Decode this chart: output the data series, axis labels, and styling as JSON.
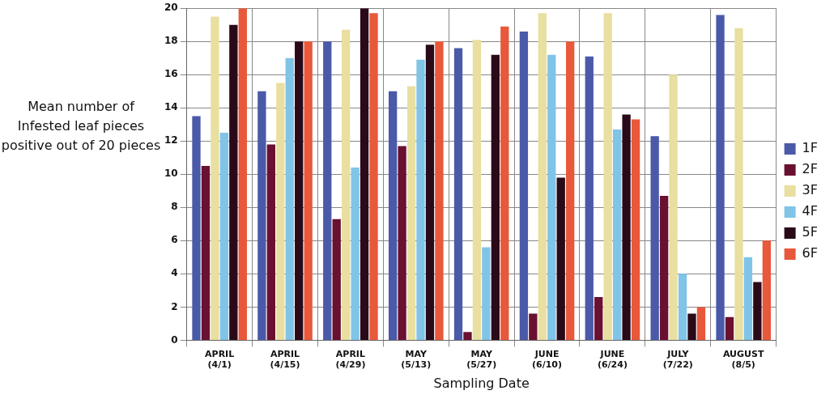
{
  "chart_data": {
    "type": "bar",
    "xlabel": "Sampling Date",
    "ylabel": "Mean number of Infested leaf pieces positive out of 20 pieces",
    "categories": [
      "APRIL (4/1)",
      "APRIL (4/15)",
      "APRIL (4/29)",
      "MAY (5/13)",
      "MAY (5/27)",
      "JUNE (6/10)",
      "JUNE (6/24)",
      "JULY (7/22)",
      "AUGUST (8/5)"
    ],
    "series": [
      {
        "name": "1F",
        "color": "#4a5aa8",
        "values": [
          13.5,
          15,
          18,
          15,
          17.6,
          18.6,
          17.1,
          12.3,
          19.6
        ]
      },
      {
        "name": "2F",
        "color": "#6a1030",
        "values": [
          10.5,
          11.8,
          7.3,
          11.7,
          0.5,
          1.6,
          2.6,
          8.7,
          1.4
        ]
      },
      {
        "name": "3F",
        "color": "#e8dfa0",
        "values": [
          19.5,
          15.5,
          18.7,
          15.3,
          18.1,
          19.7,
          19.7,
          16,
          18.8
        ]
      },
      {
        "name": "4F",
        "color": "#80c4e8",
        "values": [
          12.5,
          17,
          10.4,
          16.9,
          5.6,
          17.2,
          12.7,
          4,
          5
        ]
      },
      {
        "name": "5F",
        "color": "#2a0a18",
        "values": [
          19,
          18,
          20,
          17.8,
          17.2,
          9.8,
          13.6,
          1.6,
          3.5
        ]
      },
      {
        "name": "6F",
        "color": "#e8583a",
        "values": [
          20,
          18,
          19.7,
          18,
          18.9,
          18,
          13.3,
          2,
          6
        ]
      }
    ],
    "ylim": [
      0,
      20
    ],
    "yticks": [
      0,
      2,
      4,
      6,
      8,
      10,
      12,
      14,
      16,
      18,
      20
    ],
    "grid": true,
    "legend": "right"
  }
}
